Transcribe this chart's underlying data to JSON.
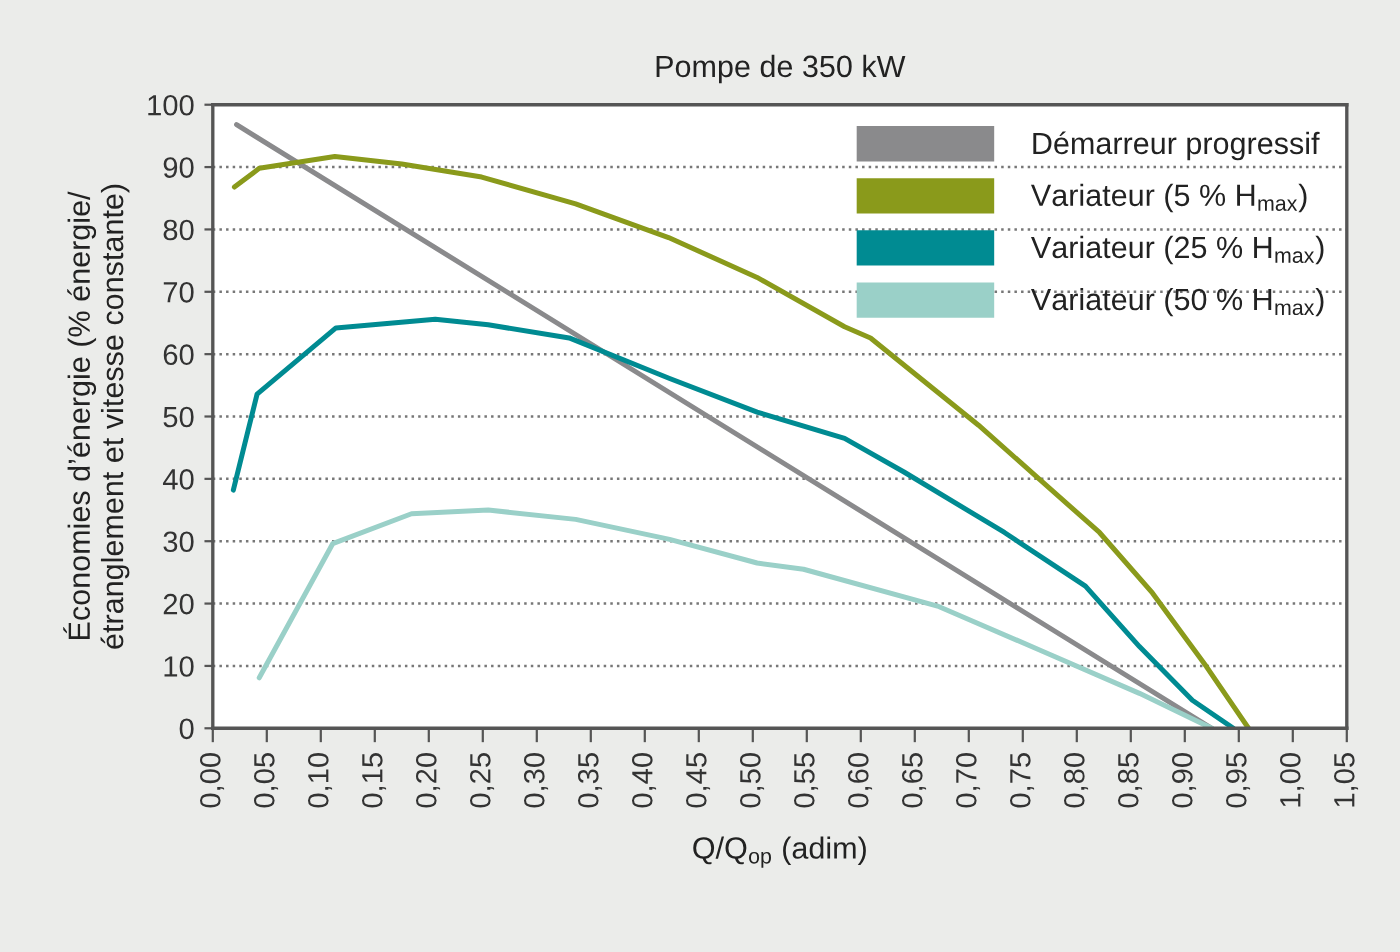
{
  "chart_data": {
    "type": "line",
    "title": "Pompe de 350 kW",
    "xlabel": "Q/Q$_{op}$ (adim)",
    "ylabel": "Économies d’énergie (% énergie/\nétranglement et vitesse constante)",
    "xlim": [
      0,
      1.05
    ],
    "ylim": [
      0,
      100
    ],
    "xticks": [
      {
        "value": 0,
        "label": "0,00"
      },
      {
        "value": 0.05,
        "label": "0,05"
      },
      {
        "value": 0.1,
        "label": "0,10"
      },
      {
        "value": 0.15,
        "label": "0,15"
      },
      {
        "value": 0.2,
        "label": "0,20"
      },
      {
        "value": 0.25,
        "label": "0,25"
      },
      {
        "value": 0.3,
        "label": "0,30"
      },
      {
        "value": 0.35,
        "label": "0,35"
      },
      {
        "value": 0.4,
        "label": "0,40"
      },
      {
        "value": 0.45,
        "label": "0,45"
      },
      {
        "value": 0.5,
        "label": "0,50"
      },
      {
        "value": 0.55,
        "label": "0,55"
      },
      {
        "value": 0.6,
        "label": "0,60"
      },
      {
        "value": 0.65,
        "label": "0,65"
      },
      {
        "value": 0.7,
        "label": "0,70"
      },
      {
        "value": 0.75,
        "label": "0,75"
      },
      {
        "value": 0.8,
        "label": "0,80"
      },
      {
        "value": 0.85,
        "label": "0,85"
      },
      {
        "value": 0.9,
        "label": "0,90"
      },
      {
        "value": 0.95,
        "label": "0,95"
      },
      {
        "value": 1.0,
        "label": "1,00"
      },
      {
        "value": 1.05,
        "label": "1,05"
      }
    ],
    "yticks": [
      0,
      10,
      20,
      30,
      40,
      50,
      60,
      70,
      80,
      90,
      100
    ],
    "grid": "y",
    "legend": "top right",
    "line_style": "solid",
    "series": [
      {
        "name": "Démarreur progressif",
        "color": "#8a8a8c",
        "x": [
          0.022,
          0.925
        ],
        "values": [
          96.8,
          0
        ]
      },
      {
        "name": "Variateur (5 % H$_{max}$)",
        "color": "#8a9a1b",
        "x": [
          0.02,
          0.043,
          0.113,
          0.175,
          0.249,
          0.336,
          0.422,
          0.504,
          0.585,
          0.609,
          0.709,
          0.765,
          0.821,
          0.87,
          0.92,
          0.959
        ],
        "values": [
          86.8,
          89.8,
          91.7,
          90.5,
          88.4,
          84.1,
          78.7,
          72.3,
          64.4,
          62.6,
          48.6,
          40.0,
          31.4,
          21.7,
          9.9,
          0
        ]
      },
      {
        "name": "Variateur (25 % H$_{max}$)",
        "color": "#008b92",
        "x": [
          0.019,
          0.041,
          0.114,
          0.206,
          0.255,
          0.33,
          0.423,
          0.504,
          0.585,
          0.64,
          0.733,
          0.808,
          0.858,
          0.907,
          0.945
        ],
        "values": [
          38.2,
          53.6,
          64.2,
          65.6,
          64.7,
          62.6,
          56.1,
          50.7,
          46.5,
          41.1,
          31.4,
          22.8,
          13.1,
          4.5,
          0
        ]
      },
      {
        "name": "Variateur (50 % H$_{max}$)",
        "color": "#9ad0c8",
        "x": [
          0.043,
          0.111,
          0.184,
          0.255,
          0.336,
          0.423,
          0.504,
          0.547,
          0.671,
          0.765,
          0.858,
          0.925
        ],
        "values": [
          8.1,
          29.6,
          34.4,
          35.0,
          33.5,
          30.3,
          26.5,
          25.5,
          19.6,
          12.6,
          5.6,
          0
        ]
      }
    ]
  }
}
